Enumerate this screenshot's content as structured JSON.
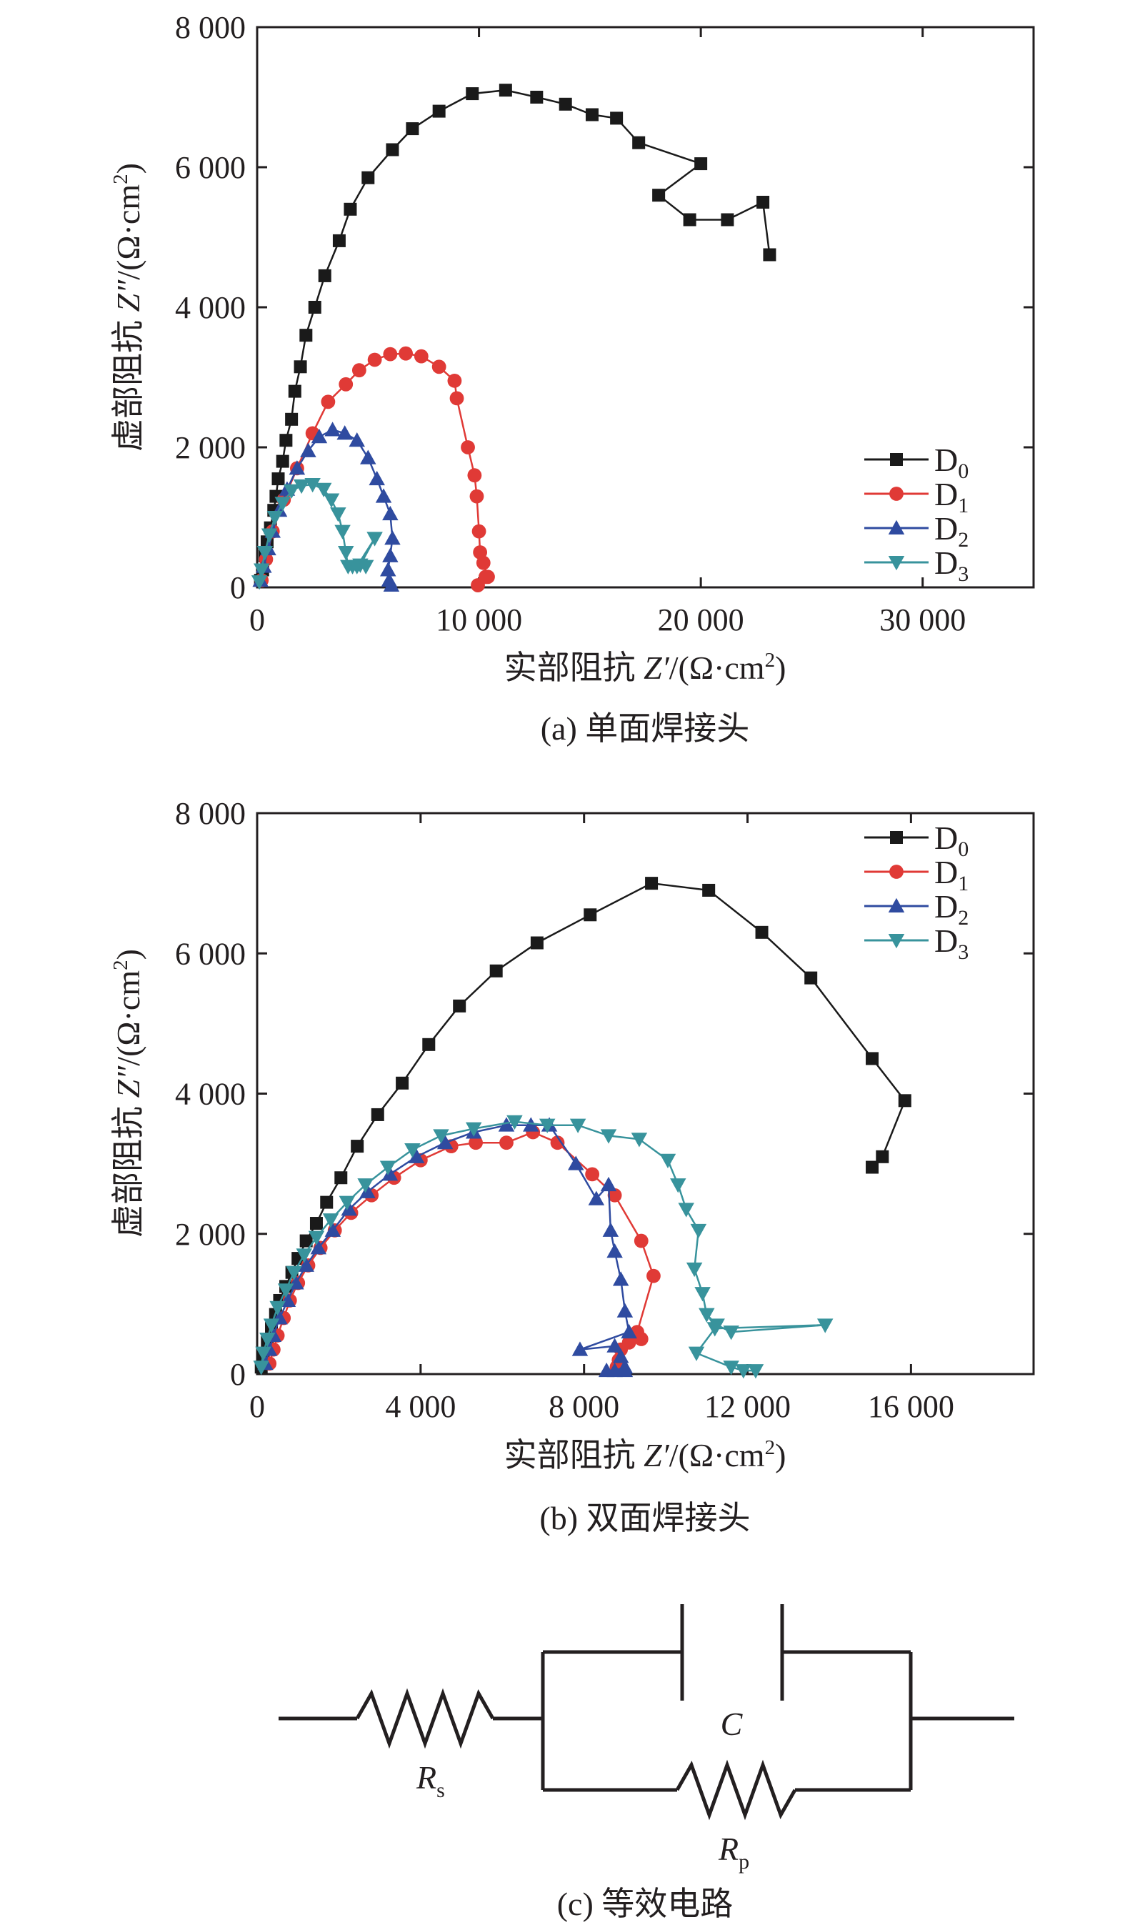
{
  "chart_data": [
    {
      "type": "scatter",
      "caption": "(a) 单面焊接头",
      "xlabel_prefix": "实部阻抗 ",
      "xlabel_var": "Z′",
      "xlabel_unit": "/(Ω·cm",
      "xlabel_sup": "2",
      "xlabel_close": ")",
      "ylabel_prefix": "虚部阻抗 ",
      "ylabel_var": "Z″",
      "ylabel_unit": "/(Ω·cm",
      "ylabel_sup": "2",
      "ylabel_close": ")",
      "xlim": [
        0,
        35000
      ],
      "ylim": [
        0,
        8000
      ],
      "xticks": [
        0,
        10000,
        20000,
        30000
      ],
      "xtick_labels": [
        "0",
        "10 000",
        "20 000",
        "30 000"
      ],
      "yticks": [
        0,
        2000,
        4000,
        6000,
        8000
      ],
      "ytick_labels": [
        "0",
        "2 000",
        "4 000",
        "6 000",
        "8 000"
      ],
      "legend_position": "bottom-right",
      "series": [
        {
          "name": "D",
          "sub": "0",
          "color": "#1a1a1a",
          "marker": "square",
          "points": [
            [
              150,
              100
            ],
            [
              250,
              250
            ],
            [
              350,
              450
            ],
            [
              450,
              650
            ],
            [
              600,
              850
            ],
            [
              750,
              1100
            ],
            [
              850,
              1300
            ],
            [
              950,
              1550
            ],
            [
              1150,
              1800
            ],
            [
              1300,
              2100
            ],
            [
              1550,
              2400
            ],
            [
              1700,
              2800
            ],
            [
              1950,
              3150
            ],
            [
              2200,
              3600
            ],
            [
              2600,
              4000
            ],
            [
              3050,
              4450
            ],
            [
              3700,
              4950
            ],
            [
              4200,
              5400
            ],
            [
              5000,
              5850
            ],
            [
              6100,
              6250
            ],
            [
              7000,
              6550
            ],
            [
              8200,
              6800
            ],
            [
              9700,
              7050
            ],
            [
              11200,
              7100
            ],
            [
              12600,
              7000
            ],
            [
              13900,
              6900
            ],
            [
              15100,
              6750
            ],
            [
              16200,
              6700
            ],
            [
              17200,
              6350
            ],
            [
              20000,
              6050
            ],
            [
              18100,
              5600
            ],
            [
              19500,
              5250
            ],
            [
              21200,
              5250
            ],
            [
              22800,
              5500
            ],
            [
              23100,
              4750
            ]
          ]
        },
        {
          "name": "D",
          "sub": "1",
          "color": "#e03a36",
          "marker": "circle",
          "points": [
            [
              200,
              100
            ],
            [
              400,
              400
            ],
            [
              700,
              800
            ],
            [
              1200,
              1250
            ],
            [
              1800,
              1700
            ],
            [
              2500,
              2200
            ],
            [
              3200,
              2650
            ],
            [
              4000,
              2900
            ],
            [
              4600,
              3100
            ],
            [
              5300,
              3250
            ],
            [
              6000,
              3330
            ],
            [
              6700,
              3340
            ],
            [
              7400,
              3300
            ],
            [
              8200,
              3150
            ],
            [
              8900,
              2950
            ],
            [
              9000,
              2700
            ],
            [
              9500,
              2000
            ],
            [
              9800,
              1600
            ],
            [
              9900,
              1300
            ],
            [
              10000,
              800
            ],
            [
              10050,
              500
            ],
            [
              10200,
              350
            ],
            [
              10400,
              150
            ],
            [
              10300,
              150
            ],
            [
              9950,
              30
            ]
          ]
        },
        {
          "name": "D",
          "sub": "2",
          "color": "#2f4ba0",
          "marker": "triangle-up",
          "points": [
            [
              150,
              100
            ],
            [
              300,
              300
            ],
            [
              500,
              550
            ],
            [
              700,
              800
            ],
            [
              1000,
              1100
            ],
            [
              1350,
              1400
            ],
            [
              1800,
              1700
            ],
            [
              2300,
              1950
            ],
            [
              2800,
              2150
            ],
            [
              3400,
              2250
            ],
            [
              3950,
              2200
            ],
            [
              4500,
              2100
            ],
            [
              5000,
              1850
            ],
            [
              5400,
              1550
            ],
            [
              5700,
              1300
            ],
            [
              6000,
              1050
            ],
            [
              6100,
              700
            ],
            [
              6000,
              450
            ],
            [
              5900,
              250
            ],
            [
              5950,
              100
            ],
            [
              6050,
              30
            ]
          ]
        },
        {
          "name": "D",
          "sub": "3",
          "color": "#38939c",
          "marker": "triangle-down",
          "points": [
            [
              100,
              80
            ],
            [
              200,
              250
            ],
            [
              350,
              500
            ],
            [
              550,
              750
            ],
            [
              800,
              1000
            ],
            [
              1150,
              1200
            ],
            [
              1550,
              1380
            ],
            [
              2000,
              1450
            ],
            [
              2500,
              1470
            ],
            [
              3000,
              1400
            ],
            [
              3350,
              1250
            ],
            [
              3650,
              1050
            ],
            [
              3850,
              800
            ],
            [
              4000,
              500
            ],
            [
              4100,
              300
            ],
            [
              4300,
              300
            ],
            [
              4650,
              320
            ],
            [
              5300,
              700
            ],
            [
              4500,
              300
            ],
            [
              4900,
              300
            ]
          ]
        }
      ]
    },
    {
      "type": "scatter",
      "caption": "(b) 双面焊接头",
      "xlabel_prefix": "实部阻抗 ",
      "xlabel_var": "Z′",
      "xlabel_unit": "/(Ω·cm",
      "xlabel_sup": "2",
      "xlabel_close": ")",
      "ylabel_prefix": "虚部阻抗 ",
      "ylabel_var": "Z″",
      "ylabel_unit": "/(Ω·cm",
      "ylabel_sup": "2",
      "ylabel_close": ")",
      "xlim": [
        0,
        19000
      ],
      "ylim": [
        0,
        8000
      ],
      "xticks": [
        0,
        4000,
        8000,
        12000,
        16000
      ],
      "xtick_labels": [
        "0",
        "4 000",
        "8 000",
        "12 000",
        "16 000"
      ],
      "yticks": [
        0,
        2000,
        4000,
        6000,
        8000
      ],
      "ytick_labels": [
        "0",
        "2 000",
        "4 000",
        "6 000",
        "8 000"
      ],
      "legend_position": "top-right",
      "series": [
        {
          "name": "D",
          "sub": "0",
          "color": "#1a1a1a",
          "marker": "square",
          "points": [
            [
              100,
              100
            ],
            [
              150,
              250
            ],
            [
              250,
              450
            ],
            [
              350,
              650
            ],
            [
              450,
              850
            ],
            [
              550,
              1050
            ],
            [
              700,
              1250
            ],
            [
              850,
              1450
            ],
            [
              1000,
              1650
            ],
            [
              1200,
              1900
            ],
            [
              1450,
              2150
            ],
            [
              1700,
              2450
            ],
            [
              2050,
              2800
            ],
            [
              2450,
              3250
            ],
            [
              2950,
              3700
            ],
            [
              3550,
              4150
            ],
            [
              4200,
              4700
            ],
            [
              4950,
              5250
            ],
            [
              5850,
              5750
            ],
            [
              6850,
              6150
            ],
            [
              8150,
              6550
            ],
            [
              9650,
              7000
            ],
            [
              11050,
              6900
            ],
            [
              12350,
              6300
            ],
            [
              13550,
              5650
            ],
            [
              15050,
              4500
            ],
            [
              15850,
              3900
            ],
            [
              15300,
              3100
            ],
            [
              15050,
              2950
            ]
          ]
        },
        {
          "name": "D",
          "sub": "1",
          "color": "#e03a36",
          "marker": "circle",
          "points": [
            [
              300,
              150
            ],
            [
              400,
              350
            ],
            [
              500,
              550
            ],
            [
              650,
              800
            ],
            [
              800,
              1050
            ],
            [
              1000,
              1300
            ],
            [
              1250,
              1550
            ],
            [
              1550,
              1800
            ],
            [
              1900,
              2050
            ],
            [
              2300,
              2300
            ],
            [
              2800,
              2550
            ],
            [
              3350,
              2800
            ],
            [
              4000,
              3050
            ],
            [
              4750,
              3250
            ],
            [
              5350,
              3300
            ],
            [
              6100,
              3300
            ],
            [
              6750,
              3450
            ],
            [
              7350,
              3300
            ],
            [
              8200,
              2850
            ],
            [
              8750,
              2550
            ],
            [
              9400,
              1900
            ],
            [
              9700,
              1400
            ],
            [
              9300,
              600
            ],
            [
              9400,
              500
            ],
            [
              9100,
              450
            ],
            [
              8900,
              350
            ],
            [
              8850,
              200
            ],
            [
              8800,
              100
            ]
          ]
        },
        {
          "name": "D",
          "sub": "2",
          "color": "#2f4ba0",
          "marker": "triangle-up",
          "points": [
            [
              200,
              150
            ],
            [
              300,
              350
            ],
            [
              400,
              550
            ],
            [
              550,
              800
            ],
            [
              750,
              1050
            ],
            [
              950,
              1300
            ],
            [
              1200,
              1550
            ],
            [
              1500,
              1800
            ],
            [
              1850,
              2050
            ],
            [
              2250,
              2350
            ],
            [
              2700,
              2600
            ],
            [
              3250,
              2850
            ],
            [
              3900,
              3100
            ],
            [
              4600,
              3300
            ],
            [
              5300,
              3450
            ],
            [
              6100,
              3550
            ],
            [
              6700,
              3550
            ],
            [
              7150,
              3550
            ],
            [
              7800,
              3000
            ],
            [
              8300,
              2500
            ],
            [
              8600,
              2700
            ],
            [
              8650,
              2050
            ],
            [
              8750,
              1750
            ],
            [
              8900,
              1350
            ],
            [
              9000,
              900
            ],
            [
              9100,
              600
            ],
            [
              7900,
              350
            ],
            [
              8750,
              400
            ],
            [
              8900,
              250
            ],
            [
              9000,
              100
            ],
            [
              8750,
              50
            ],
            [
              8550,
              50
            ],
            [
              9000,
              50
            ]
          ]
        },
        {
          "name": "D",
          "sub": "3",
          "color": "#38939c",
          "marker": "triangle-down",
          "points": [
            [
              100,
              100
            ],
            [
              150,
              300
            ],
            [
              250,
              500
            ],
            [
              350,
              700
            ],
            [
              500,
              950
            ],
            [
              700,
              1200
            ],
            [
              900,
              1450
            ],
            [
              1150,
              1700
            ],
            [
              1450,
              1950
            ],
            [
              1800,
              2200
            ],
            [
              2200,
              2450
            ],
            [
              2650,
              2700
            ],
            [
              3200,
              2950
            ],
            [
              3800,
              3200
            ],
            [
              4500,
              3400
            ],
            [
              5300,
              3500
            ],
            [
              6300,
              3600
            ],
            [
              7100,
              3550
            ],
            [
              7850,
              3550
            ],
            [
              8600,
              3400
            ],
            [
              9350,
              3350
            ],
            [
              10050,
              3050
            ],
            [
              10300,
              2700
            ],
            [
              10500,
              2350
            ],
            [
              10800,
              2050
            ],
            [
              10700,
              1500
            ],
            [
              10900,
              1150
            ],
            [
              11000,
              850
            ],
            [
              11250,
              700
            ],
            [
              11600,
              600
            ],
            [
              13900,
              700
            ],
            [
              11200,
              650
            ],
            [
              10750,
              300
            ],
            [
              11600,
              100
            ],
            [
              11900,
              50
            ],
            [
              12200,
              50
            ]
          ]
        }
      ]
    }
  ],
  "circuit": {
    "rs_main": "R",
    "rs_sub": "s",
    "c_label": "C",
    "rp_main": "R",
    "rp_sub": "p",
    "caption": "(c) 等效电路"
  }
}
